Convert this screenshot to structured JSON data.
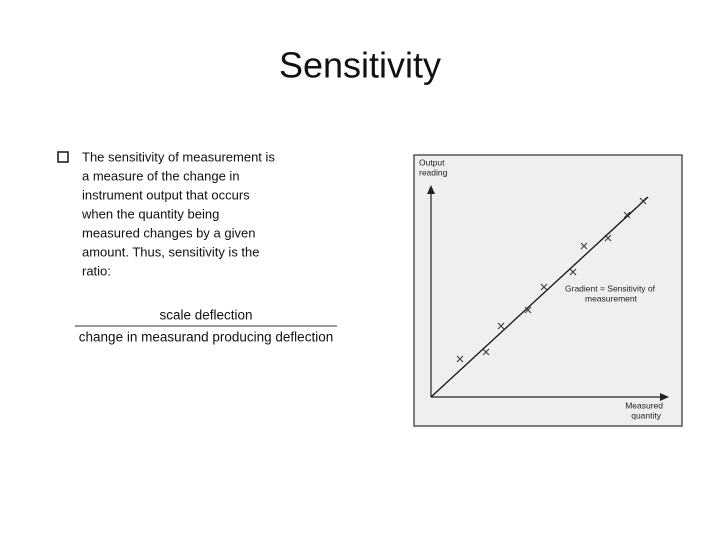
{
  "title": "Sensitivity",
  "bullet": {
    "lines": [
      "The sensitivity of measurement is",
      "a measure of the change in",
      "instrument output that occurs",
      "when the quantity being",
      "measured changes by a given",
      "amount. Thus, sensitivity is the",
      "ratio:"
    ]
  },
  "fraction": {
    "numerator": "scale deflection",
    "denominator": "change in measurand producing deflection"
  },
  "figure": {
    "y_axis_label": [
      "Output",
      "reading"
    ],
    "x_axis_label": [
      "Measured",
      "quantity"
    ],
    "annotation": [
      "Gradient = Sensitivity of",
      "measurement"
    ]
  }
}
